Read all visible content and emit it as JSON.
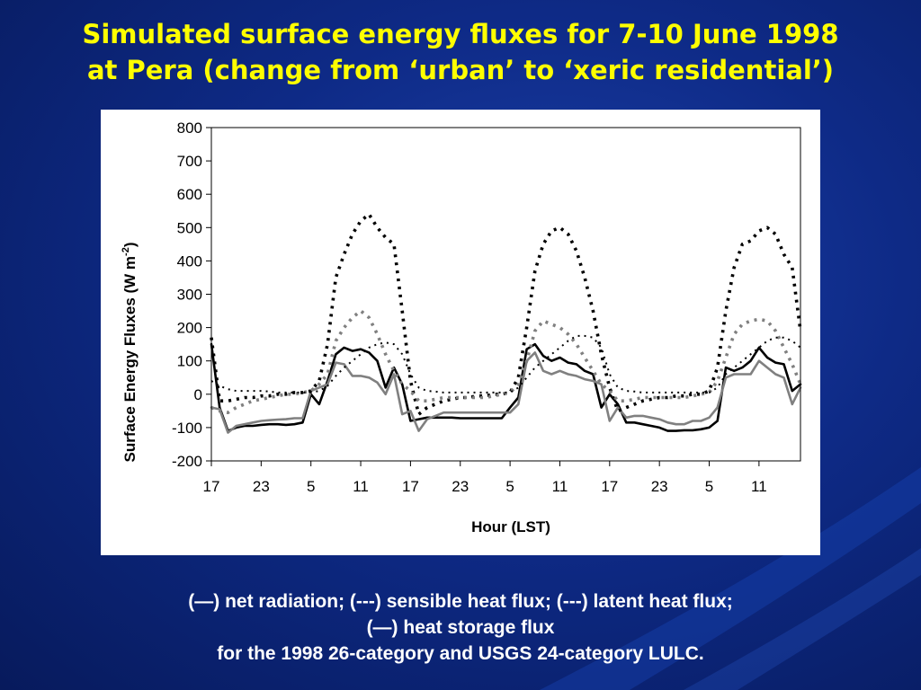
{
  "slide": {
    "title_line1": "Simulated surface energy fluxes for 7-10 June 1998",
    "title_line2": "at Pera (change from ‘urban’ to ‘xeric residential’)",
    "caption_line1": "(—) net radiation; (---) sensible heat flux; (---) latent heat flux;",
    "caption_line2": "(—) heat storage flux",
    "caption_line3": "for the 1998 26-category and USGS 24-category LULC."
  },
  "colors": {
    "background": "#0e2a86",
    "title": "#ffff00",
    "black_series": "#000000",
    "gray_series": "#808080"
  },
  "chart_data": {
    "type": "line",
    "title": "",
    "xlabel": "Hour (LST)",
    "ylabel_main": "Surface Energy Fluxes (W m",
    "ylabel_sup": "-2",
    "ylabel_end": ")",
    "ylim": [
      -200,
      800
    ],
    "yticks": [
      -200,
      -100,
      0,
      100,
      200,
      300,
      400,
      500,
      600,
      700,
      800
    ],
    "xlim": [
      0,
      71
    ],
    "xticks": [
      {
        "x": 0,
        "label": "17"
      },
      {
        "x": 6,
        "label": "23"
      },
      {
        "x": 12,
        "label": "5"
      },
      {
        "x": 18,
        "label": "11"
      },
      {
        "x": 24,
        "label": "17"
      },
      {
        "x": 30,
        "label": "23"
      },
      {
        "x": 36,
        "label": "5"
      },
      {
        "x": 42,
        "label": "11"
      },
      {
        "x": 48,
        "label": "17"
      },
      {
        "x": 54,
        "label": "23"
      },
      {
        "x": 60,
        "label": "5"
      },
      {
        "x": 66,
        "label": "11"
      }
    ],
    "grid": false,
    "legend": "none",
    "series": [
      {
        "color": "#000000",
        "style": "solid",
        "values": [
          150,
          -40,
          -110,
          -100,
          -95,
          -95,
          -92,
          -90,
          -90,
          -92,
          -90,
          -85,
          0,
          -30,
          40,
          120,
          140,
          130,
          135,
          125,
          100,
          20,
          80,
          30,
          -80,
          -75,
          -70,
          -70,
          -70,
          -70,
          -72,
          -72,
          -72,
          -72,
          -72,
          -72,
          -40,
          -10,
          135,
          150,
          115,
          100,
          110,
          95,
          90,
          70,
          60,
          -40,
          0,
          -30,
          -85,
          -85,
          -90,
          -95,
          -100,
          -110,
          -110,
          -108,
          -108,
          -105,
          -100,
          -80,
          80,
          70,
          80,
          100,
          140,
          110,
          95,
          90,
          10,
          30
        ]
      },
      {
        "color": "#808080",
        "style": "solid",
        "values": [
          -40,
          -45,
          -115,
          -95,
          -90,
          -85,
          -80,
          -78,
          -76,
          -75,
          -72,
          -72,
          10,
          20,
          30,
          95,
          90,
          55,
          55,
          50,
          35,
          0,
          60,
          -60,
          -50,
          -110,
          -75,
          -65,
          -55,
          -55,
          -55,
          -55,
          -55,
          -55,
          -55,
          -55,
          -55,
          -30,
          100,
          125,
          70,
          60,
          70,
          60,
          55,
          45,
          40,
          30,
          -80,
          -40,
          -70,
          -65,
          -65,
          -70,
          -75,
          -85,
          -90,
          -90,
          -80,
          -80,
          -70,
          -40,
          50,
          60,
          60,
          60,
          100,
          80,
          60,
          50,
          -30,
          20
        ]
      },
      {
        "color": "#000000",
        "style": "dotted",
        "values": [
          170,
          -20,
          -20,
          -15,
          -10,
          -10,
          -5,
          -5,
          0,
          0,
          5,
          5,
          10,
          40,
          150,
          350,
          420,
          480,
          520,
          540,
          500,
          470,
          450,
          250,
          40,
          -60,
          -40,
          -30,
          -20,
          -15,
          -10,
          -10,
          -5,
          -5,
          0,
          0,
          5,
          50,
          200,
          370,
          450,
          490,
          500,
          480,
          430,
          350,
          250,
          120,
          20,
          -50,
          -40,
          -30,
          -20,
          -15,
          -10,
          -10,
          -5,
          -5,
          0,
          0,
          10,
          80,
          250,
          380,
          450,
          460,
          490,
          500,
          480,
          420,
          380,
          190
        ]
      },
      {
        "color": "#808080",
        "style": "dotted",
        "values": [
          -40,
          -50,
          -55,
          -40,
          -30,
          -20,
          -15,
          -10,
          -5,
          0,
          0,
          5,
          10,
          30,
          60,
          160,
          200,
          230,
          250,
          230,
          180,
          120,
          70,
          30,
          10,
          -20,
          -20,
          -15,
          -10,
          -10,
          -10,
          -10,
          -10,
          -10,
          -5,
          0,
          5,
          30,
          100,
          190,
          220,
          210,
          200,
          180,
          150,
          110,
          70,
          30,
          10,
          -20,
          -20,
          -15,
          -10,
          -10,
          -10,
          -10,
          -10,
          -10,
          -5,
          0,
          5,
          40,
          110,
          180,
          210,
          220,
          225,
          220,
          190,
          140,
          90,
          30
        ]
      },
      {
        "color": "#000000",
        "style": "fine-dotted",
        "values": [
          40,
          25,
          15,
          10,
          10,
          10,
          10,
          8,
          5,
          5,
          5,
          5,
          5,
          10,
          25,
          55,
          80,
          100,
          120,
          140,
          150,
          155,
          150,
          120,
          60,
          20,
          10,
          8,
          5,
          5,
          5,
          5,
          5,
          5,
          5,
          5,
          5,
          20,
          50,
          80,
          100,
          120,
          140,
          160,
          175,
          175,
          170,
          140,
          60,
          20,
          10,
          8,
          5,
          5,
          5,
          5,
          5,
          5,
          5,
          5,
          5,
          20,
          60,
          80,
          100,
          120,
          140,
          160,
          170,
          170,
          160,
          140
        ]
      }
    ]
  }
}
